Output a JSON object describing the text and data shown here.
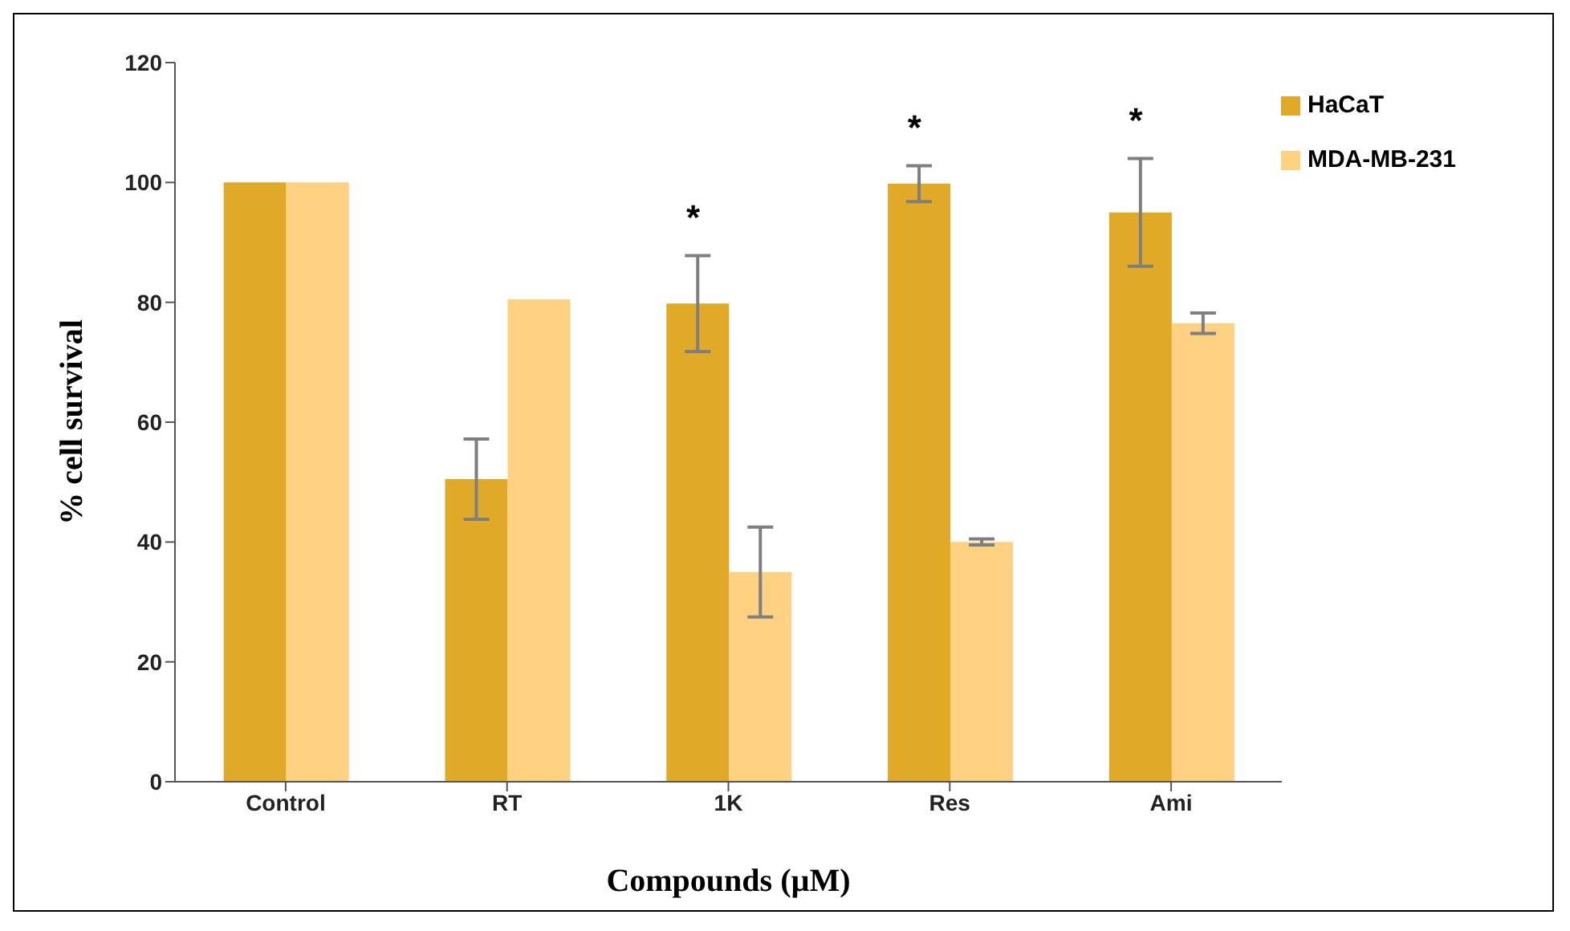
{
  "chart_data": {
    "type": "bar",
    "xlabel": "Compounds (µM)",
    "ylabel": "% cell survival",
    "categories": [
      "Control",
      "RT",
      "1K",
      "Res",
      "Ami"
    ],
    "series": [
      {
        "name": "HaCaT",
        "color": "#e0aa28",
        "values": [
          100,
          50.5,
          79.8,
          99.8,
          95
        ],
        "errors": [
          null,
          6.7,
          8,
          3,
          9
        ]
      },
      {
        "name": "MDA-MB-231",
        "color": "#fed183",
        "values": [
          100,
          80.5,
          35,
          40,
          76.5
        ],
        "errors": [
          null,
          null,
          7.5,
          0.5,
          1.7
        ]
      }
    ],
    "ylim": [
      0,
      120
    ],
    "yticks": [
      0,
      20,
      40,
      60,
      80,
      100,
      120
    ],
    "grid": false,
    "legend": "top right",
    "annotations": [
      {
        "text": "*",
        "x": "1K",
        "y": 79.8
      },
      {
        "text": "*",
        "x": "Res",
        "y": 99.8
      },
      {
        "text": "*",
        "x": "Ami",
        "y": 95
      }
    ]
  }
}
